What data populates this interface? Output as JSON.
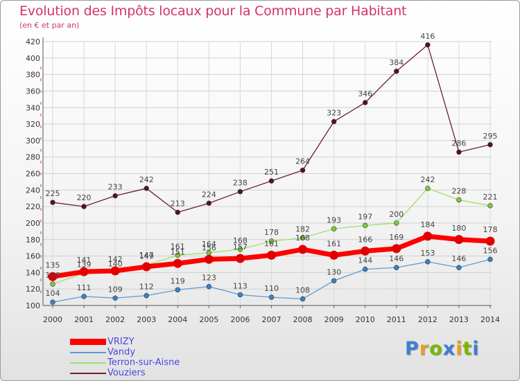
{
  "title": "Evolution des Impôts locaux pour la Commune par Habitant",
  "subtitle": "(en € et par an)",
  "logo": "Proxiti",
  "colors": {
    "VRIZY": "#ff0000",
    "Vandy": "#5a9bd4",
    "Terron-sur-Aisne": "#9ee06a",
    "Vouziers": "#6b1f2a",
    "title": "#d1336b"
  },
  "chart_data": {
    "type": "line",
    "title": "Evolution des Impôts locaux pour la Commune par Habitant",
    "ylabel": "(en € et par an)",
    "xlabel": "",
    "ylim": [
      100,
      420
    ],
    "yticks": [
      100,
      120,
      140,
      160,
      180,
      200,
      220,
      240,
      260,
      280,
      300,
      320,
      340,
      360,
      380,
      400,
      420
    ],
    "categories": [
      "2000",
      "2001",
      "2002",
      "2003",
      "2004",
      "2005",
      "2006",
      "2007",
      "2008",
      "2009",
      "2010",
      "2011",
      "2012",
      "2013",
      "2014"
    ],
    "grid": true,
    "series": [
      {
        "name": "Vouziers",
        "values": [
          225,
          220,
          233,
          242,
          213,
          224,
          238,
          251,
          264,
          323,
          346,
          384,
          416,
          286,
          295
        ]
      },
      {
        "name": "Terron-sur-Aisne",
        "values": [
          126,
          139,
          140,
          149,
          161,
          164,
          168,
          178,
          182,
          193,
          197,
          200,
          242,
          228,
          221
        ]
      },
      {
        "name": "Vandy",
        "values": [
          104,
          111,
          109,
          112,
          119,
          123,
          113,
          110,
          108,
          130,
          144,
          146,
          153,
          146,
          156
        ]
      },
      {
        "name": "VRIZY",
        "values": [
          135,
          141,
          142,
          147,
          151,
          156,
          157,
          161,
          168,
          161,
          166,
          169,
          184,
          180,
          178
        ]
      }
    ],
    "legend": [
      "VRIZY",
      "Vandy",
      "Terron-sur-Aisne",
      "Vouziers"
    ]
  }
}
